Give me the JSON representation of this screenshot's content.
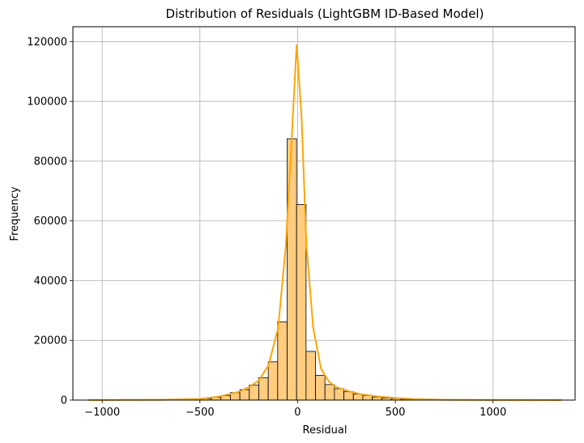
{
  "chart_data": {
    "type": "bar",
    "title": "Distribution of Residuals (LightGBM ID-Based Model)",
    "xlabel": "Residual",
    "ylabel": "Frequency",
    "xlim": [
      -1150,
      1420
    ],
    "ylim": [
      0,
      125000
    ],
    "xticks": [
      -1000,
      -500,
      0,
      500,
      1000
    ],
    "xtick_labels": [
      "−1000",
      "−500",
      "0",
      "500",
      "1000"
    ],
    "yticks": [
      0,
      20000,
      40000,
      60000,
      80000,
      100000,
      120000
    ],
    "ytick_labels": [
      "0",
      "20000",
      "40000",
      "60000",
      "80000",
      "100000",
      "120000"
    ],
    "grid": true,
    "legend": "none",
    "bar_color": "#ffcc80",
    "bar_edge_color": "#000000",
    "kde_color": "#ffa500",
    "bin_width": 48.4,
    "bins_start": -1070,
    "bins": [
      {
        "x": -1045.8,
        "count": 0
      },
      {
        "x": -997.4,
        "count": 0
      },
      {
        "x": -949.0,
        "count": 0
      },
      {
        "x": -900.6,
        "count": 0
      },
      {
        "x": -852.2,
        "count": 0
      },
      {
        "x": -803.8,
        "count": 0
      },
      {
        "x": -755.4,
        "count": 0
      },
      {
        "x": -707.0,
        "count": 0
      },
      {
        "x": -658.6,
        "count": 0
      },
      {
        "x": -610.2,
        "count": 100
      },
      {
        "x": -561.8,
        "count": 200
      },
      {
        "x": -513.4,
        "count": 300
      },
      {
        "x": -465.0,
        "count": 500
      },
      {
        "x": -416.6,
        "count": 900
      },
      {
        "x": -368.2,
        "count": 1500
      },
      {
        "x": -319.8,
        "count": 2500
      },
      {
        "x": -271.4,
        "count": 3500
      },
      {
        "x": -223.0,
        "count": 5000
      },
      {
        "x": -174.6,
        "count": 7500
      },
      {
        "x": -126.2,
        "count": 12800
      },
      {
        "x": -77.8,
        "count": 26200
      },
      {
        "x": -29.4,
        "count": 87500
      },
      {
        "x": 19.0,
        "count": 65500
      },
      {
        "x": 67.4,
        "count": 16300
      },
      {
        "x": 115.8,
        "count": 8300
      },
      {
        "x": 164.2,
        "count": 5200
      },
      {
        "x": 212.6,
        "count": 3800
      },
      {
        "x": 261.0,
        "count": 2800
      },
      {
        "x": 309.4,
        "count": 2000
      },
      {
        "x": 357.8,
        "count": 1500
      },
      {
        "x": 406.2,
        "count": 1000
      },
      {
        "x": 454.6,
        "count": 700
      },
      {
        "x": 503.0,
        "count": 500
      },
      {
        "x": 551.4,
        "count": 300
      },
      {
        "x": 599.8,
        "count": 200
      },
      {
        "x": 648.2,
        "count": 100
      },
      {
        "x": 696.6,
        "count": 100
      },
      {
        "x": 745.0,
        "count": 0
      },
      {
        "x": 793.4,
        "count": 0
      },
      {
        "x": 841.8,
        "count": 0
      },
      {
        "x": 890.2,
        "count": 0
      },
      {
        "x": 938.6,
        "count": 0
      },
      {
        "x": 987.0,
        "count": 0
      },
      {
        "x": 1035.4,
        "count": 0
      },
      {
        "x": 1083.8,
        "count": 0
      },
      {
        "x": 1132.2,
        "count": 0
      },
      {
        "x": 1180.6,
        "count": 0
      },
      {
        "x": 1229.0,
        "count": 0
      },
      {
        "x": 1277.4,
        "count": 0
      },
      {
        "x": 1325.8,
        "count": 0
      }
    ],
    "kde": [
      {
        "x": -1070,
        "y": 0
      },
      {
        "x": -700,
        "y": 100
      },
      {
        "x": -500,
        "y": 400
      },
      {
        "x": -400,
        "y": 1200
      },
      {
        "x": -300,
        "y": 2800
      },
      {
        "x": -250,
        "y": 4300
      },
      {
        "x": -200,
        "y": 6500
      },
      {
        "x": -150,
        "y": 11500
      },
      {
        "x": -100,
        "y": 24000
      },
      {
        "x": -60,
        "y": 52000
      },
      {
        "x": -30,
        "y": 88000
      },
      {
        "x": -5,
        "y": 119000
      },
      {
        "x": 20,
        "y": 95000
      },
      {
        "x": 45,
        "y": 52000
      },
      {
        "x": 80,
        "y": 24000
      },
      {
        "x": 120,
        "y": 10500
      },
      {
        "x": 160,
        "y": 6200
      },
      {
        "x": 200,
        "y": 4300
      },
      {
        "x": 260,
        "y": 3000
      },
      {
        "x": 320,
        "y": 2000
      },
      {
        "x": 400,
        "y": 1300
      },
      {
        "x": 500,
        "y": 700
      },
      {
        "x": 600,
        "y": 350
      },
      {
        "x": 750,
        "y": 100
      },
      {
        "x": 1000,
        "y": 30
      },
      {
        "x": 1350,
        "y": 0
      }
    ]
  }
}
